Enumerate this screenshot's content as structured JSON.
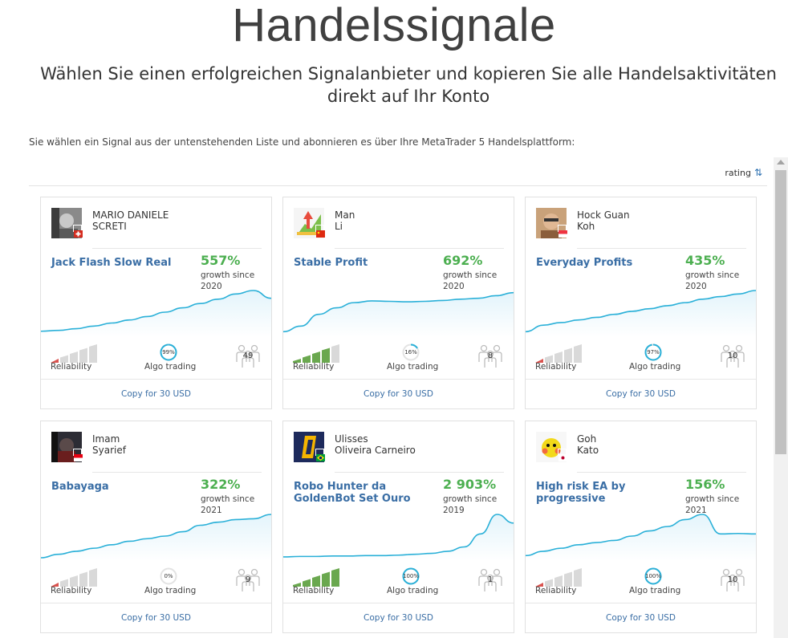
{
  "page": {
    "title": "Handelssignale",
    "subtitle": "Wählen Sie einen erfolgreichen Signalanbieter und kopieren Sie alle Handelsaktivitäten direkt auf Ihr Konto",
    "intro": "Sie wählen ein Signal aus der untenstehenden Liste und abonnieren es über Ihre MetaTrader 5 Handelsplattform:",
    "sort_label": "rating",
    "sort_icon": "sort-arrows-icon"
  },
  "colors": {
    "accent_blue": "#3a6ea5",
    "growth_green": "#4caf50",
    "chart_line": "#2ab0d8",
    "chart_fill": "#e3f4fb",
    "reliability_red": "#d9534f",
    "reliability_green": "#6aa84f",
    "bar_grey": "#d9d9d9"
  },
  "cards": [
    {
      "provider_line1": "MARIO DANIELE",
      "provider_line2": "SCRETI",
      "flag": "switzerland",
      "signal_name": "Jack Flash Slow Real",
      "growth": "557%",
      "growth_since_line1": "growth since",
      "growth_since_line2": "2020",
      "reliability_label": "Reliability",
      "reliability_level": 1,
      "reliability_color": "red",
      "algo_label": "Algo trading",
      "algo_value": "99%",
      "algo_fraction": 0.99,
      "subscribers": "49",
      "copy_label": "Copy for 30 USD",
      "chart": [
        0.06,
        0.08,
        0.12,
        0.18,
        0.25,
        0.32,
        0.4,
        0.5,
        0.6,
        0.7,
        0.8,
        0.92,
        1.0,
        0.82
      ]
    },
    {
      "provider_line1": "Man",
      "provider_line2": "Li",
      "flag": "china",
      "signal_name": "Stable Profit",
      "growth": "692%",
      "growth_since_line1": "growth since",
      "growth_since_line2": "2020",
      "reliability_label": "Reliability",
      "reliability_level": 4,
      "reliability_color": "green",
      "algo_label": "Algo trading",
      "algo_value": "16%",
      "algo_fraction": 0.16,
      "subscribers": "8",
      "copy_label": "Copy for 30 USD",
      "chart": [
        0.05,
        0.18,
        0.45,
        0.6,
        0.72,
        0.76,
        0.75,
        0.74,
        0.75,
        0.77,
        0.8,
        0.82,
        0.88,
        0.95
      ]
    },
    {
      "provider_line1": "Hock Guan",
      "provider_line2": "Koh",
      "flag": "singapore",
      "signal_name": "Everyday Profits",
      "growth": "435%",
      "growth_since_line1": "growth since",
      "growth_since_line2": "2020",
      "reliability_label": "Reliability",
      "reliability_level": 1,
      "reliability_color": "red",
      "algo_label": "Algo trading",
      "algo_value": "97%",
      "algo_fraction": 0.97,
      "subscribers": "10",
      "copy_label": "Copy for 30 USD",
      "chart": [
        0.05,
        0.2,
        0.26,
        0.32,
        0.38,
        0.45,
        0.52,
        0.58,
        0.65,
        0.72,
        0.8,
        0.86,
        0.92,
        1.0
      ]
    },
    {
      "provider_line1": "Imam",
      "provider_line2": "Syarief",
      "flag": "indonesia",
      "signal_name": "Babayaga",
      "growth": "322%",
      "growth_since_line1": "growth since",
      "growth_since_line2": "2021",
      "reliability_label": "Reliability",
      "reliability_level": 1,
      "reliability_color": "red",
      "algo_label": "Algo trading",
      "algo_value": "0%",
      "algo_fraction": 0.0,
      "subscribers": "9",
      "copy_label": "Copy for 30 USD",
      "chart": [
        0.0,
        0.08,
        0.15,
        0.22,
        0.3,
        0.38,
        0.44,
        0.5,
        0.6,
        0.75,
        0.82,
        0.88,
        0.9,
        1.0
      ]
    },
    {
      "provider_line1": "Ulisses",
      "provider_line2": "Oliveira Carneiro",
      "flag": "brazil",
      "signal_name": "Robo Hunter da GoldenBot Set Ouro",
      "growth": "2 903%",
      "growth_since_line1": "growth since",
      "growth_since_line2": "2019",
      "reliability_label": "Reliability",
      "reliability_level": 5,
      "reliability_color": "green",
      "algo_label": "Algo trading",
      "algo_value": "100%",
      "algo_fraction": 1.0,
      "subscribers": "1",
      "copy_label": "Copy for 30 USD",
      "chart": [
        0.02,
        0.03,
        0.03,
        0.04,
        0.04,
        0.05,
        0.05,
        0.06,
        0.08,
        0.1,
        0.15,
        0.25,
        0.55,
        1.0,
        0.8
      ]
    },
    {
      "provider_line1": "Goh",
      "provider_line2": "Kato",
      "flag": "japan",
      "signal_name": "High risk EA by progressive",
      "growth": "156%",
      "growth_since_line1": "growth since",
      "growth_since_line2": "2021",
      "reliability_label": "Reliability",
      "reliability_level": 1,
      "reliability_color": "red",
      "algo_label": "Algo trading",
      "algo_value": "100%",
      "algo_fraction": 1.0,
      "subscribers": "10",
      "copy_label": "Copy for 30 USD",
      "chart": [
        0.05,
        0.15,
        0.22,
        0.3,
        0.35,
        0.4,
        0.5,
        0.62,
        0.72,
        0.88,
        1.0,
        0.55,
        0.56,
        0.55
      ]
    }
  ]
}
